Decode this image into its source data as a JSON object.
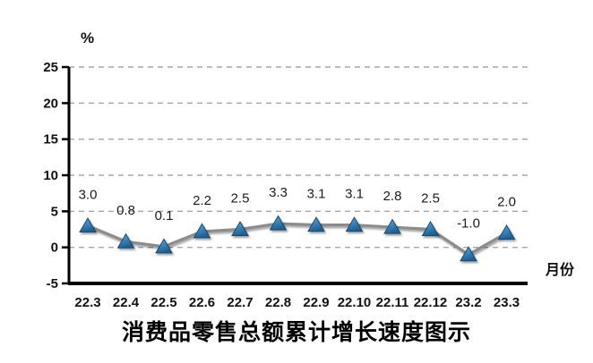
{
  "chart_data": {
    "type": "line",
    "title": "消费品零售总额累计增长速度图示",
    "ylabel": "%",
    "xlabel": "月份",
    "categories": [
      "22.3",
      "22.4",
      "22.5",
      "22.6",
      "22.7",
      "22.8",
      "22.9",
      "22.10",
      "22.11",
      "22.12",
      "23.2",
      "23.3"
    ],
    "values": [
      3.0,
      0.8,
      0.1,
      2.2,
      2.5,
      3.3,
      3.1,
      3.1,
      2.8,
      2.5,
      -1.0,
      2.0
    ],
    "ylim": [
      -5,
      25
    ],
    "yticks": [
      25,
      20,
      15,
      10,
      5,
      0,
      -5
    ],
    "grid": "horizontal-dashed",
    "legend": "none",
    "marker": "triangle",
    "colors": {
      "line": "#8c8c8c",
      "marker_fill_top": "#62aadf",
      "marker_fill_bottom": "#1d6095",
      "marker_stroke": "#184a70",
      "grid": "#a6a6a6",
      "axis": "#000000",
      "text": "#111111"
    }
  }
}
